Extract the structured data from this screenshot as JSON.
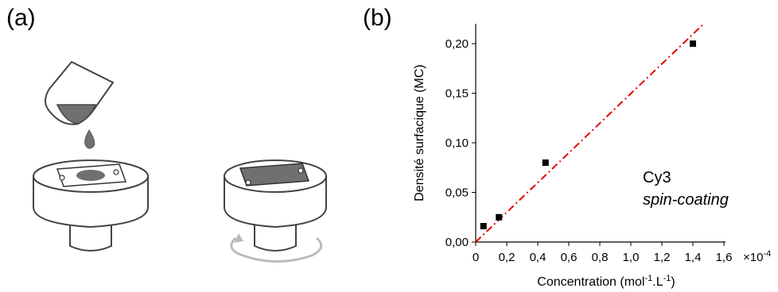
{
  "panel_labels": {
    "a": "(a)",
    "b": "(b)"
  },
  "colors": {
    "fit_line": "#e00000",
    "markers": "#000000",
    "liquid": "#707070",
    "device_outline": "#555555",
    "rotation_arrow": "#bbbbbb"
  },
  "illustration": {
    "icons": [
      "pipette-icon",
      "droplet-icon",
      "spin-coater-with-drop-icon",
      "spin-coater-coated-icon",
      "rotation-arrow-icon"
    ]
  },
  "chart_data": {
    "type": "scatter",
    "xlabel": "Concentration (mol-1.L-1)",
    "xlabel_parts": {
      "base": "Concentration (mol",
      "sup1": "-1",
      "mid": ".L",
      "sup2": "-1",
      "end": ")"
    },
    "ylabel": "Densité surfacique (MC)",
    "x_multiplier": "×10-4",
    "x_multiplier_parts": {
      "base": "×10",
      "sup": "-4"
    },
    "xlim": [
      0,
      1.6
    ],
    "ylim": [
      0,
      0.22
    ],
    "x_ticks": [
      0,
      0.2,
      0.4,
      0.6,
      0.8,
      1.0,
      1.2,
      1.4,
      1.6
    ],
    "x_tick_labels": [
      "0",
      "0,2",
      "0,4",
      "0,6",
      "0,8",
      "1,0",
      "1,2",
      "1,4",
      "1,6"
    ],
    "y_ticks": [
      0,
      0.05,
      0.1,
      0.15,
      0.2
    ],
    "y_tick_labels": [
      "0,00",
      "0,05",
      "0,10",
      "0,15",
      "0,20"
    ],
    "series": [
      {
        "x": [
          0.05,
          0.15,
          0.45,
          1.4
        ],
        "y": [
          0.016,
          0.025,
          0.08,
          0.2
        ]
      }
    ],
    "fit_line": {
      "x": [
        0,
        1.47
      ],
      "y": [
        0,
        0.22
      ],
      "style": "dash-dot"
    },
    "annotation": {
      "line1": "Cy3",
      "line2": "spin-coating"
    },
    "grid": false,
    "legend": "none"
  }
}
